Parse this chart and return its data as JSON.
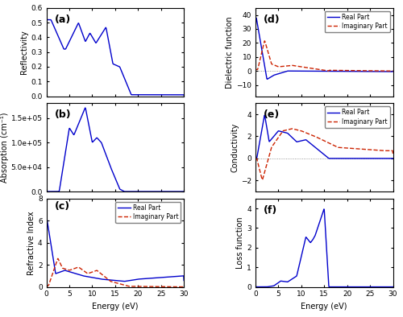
{
  "fig_width": 5.0,
  "fig_height": 3.94,
  "dpi": 100,
  "energy_max": 30,
  "line_color_real": "#0000CC",
  "line_color_imag": "#CC2200",
  "panel_labels": [
    "(a)",
    "(b)",
    "(c)",
    "(d)",
    "(e)",
    "(f)"
  ],
  "ylabel_a": "Reflectivity",
  "ylabel_b": "Absorption (cm⁻¹)",
  "ylabel_c": "Refractive Index",
  "ylabel_d": "Dielectric function",
  "ylabel_e": "Conductivity",
  "ylabel_f": "Loss function",
  "xlabel": "Energy (eV)",
  "legend_real": "Real Part",
  "legend_imag": "Imaginary Part",
  "ylim_a": [
    0.0,
    0.6
  ],
  "ylim_b": [
    0.0,
    180000.0
  ],
  "ylim_c": [
    0,
    8
  ],
  "ylim_d": [
    -18,
    45
  ],
  "ylim_e": [
    -3,
    5
  ],
  "ylim_f": [
    0,
    4.5
  ]
}
